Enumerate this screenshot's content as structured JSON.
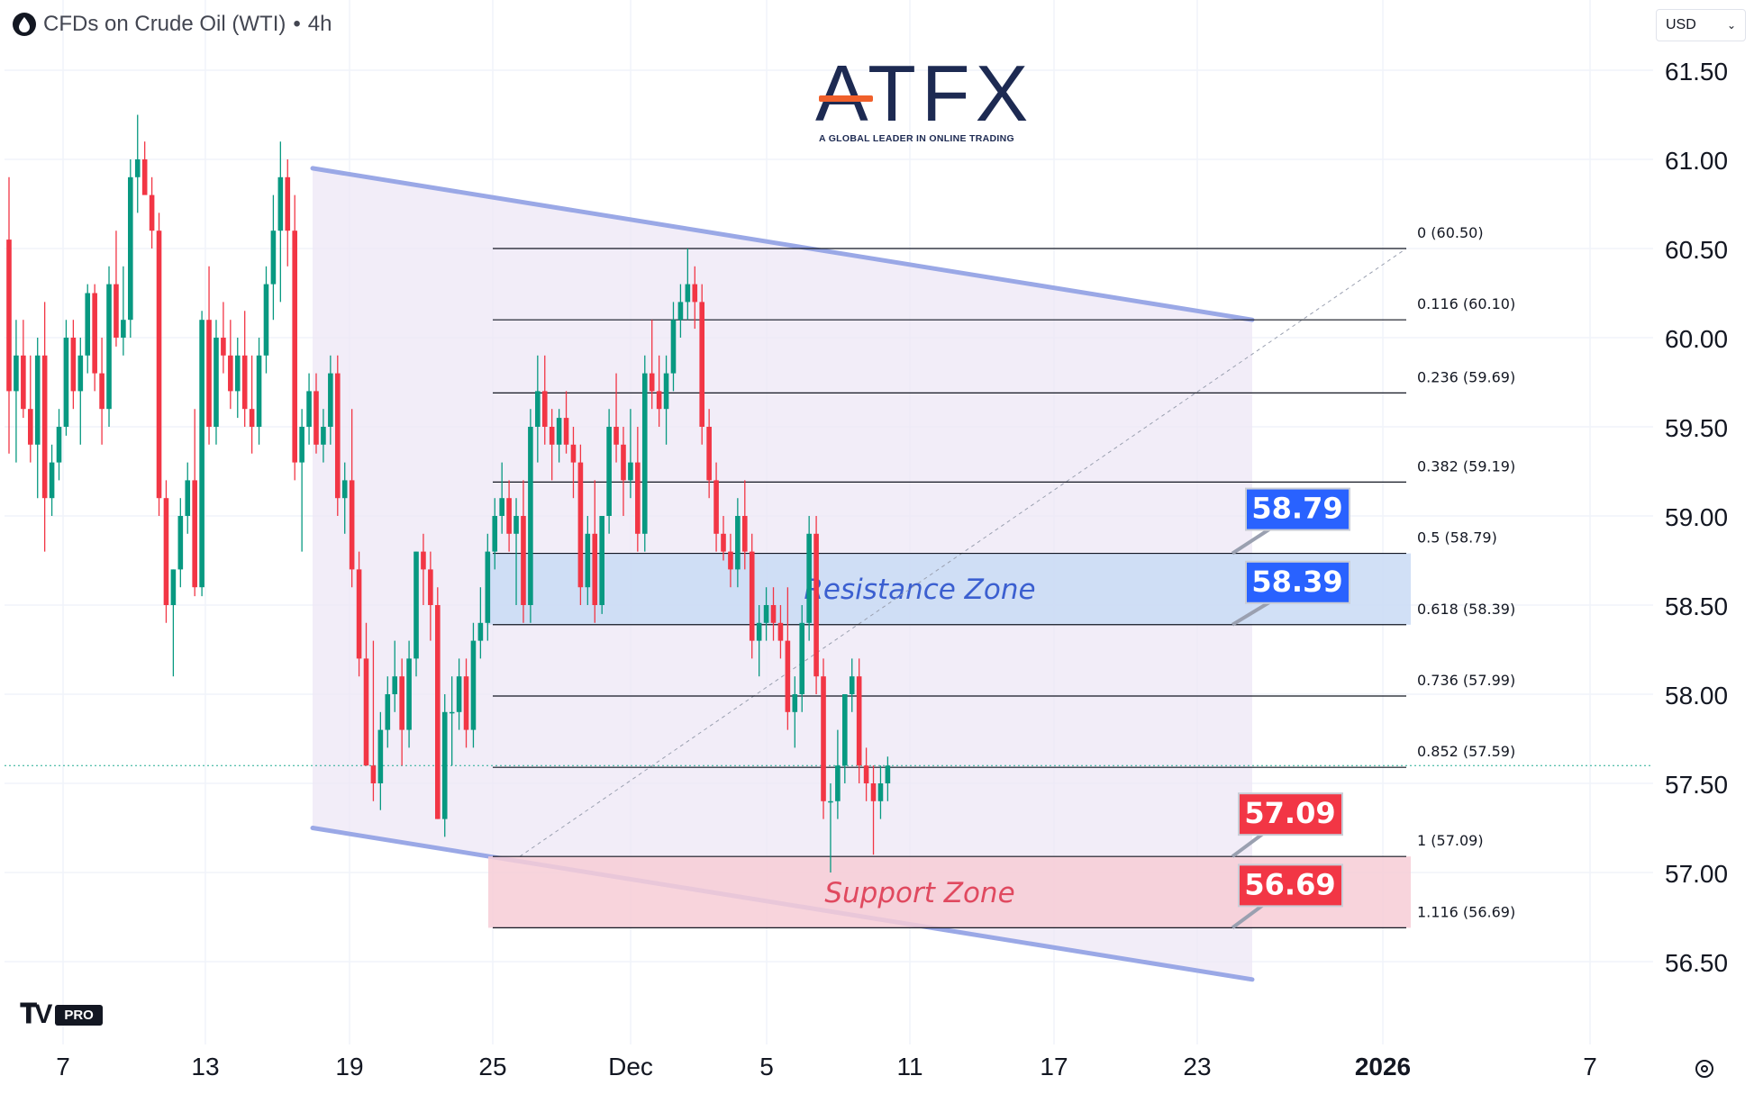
{
  "header": {
    "symbol": "CFDs on Crude Oil (WTI)",
    "separator": "•",
    "interval": "4h",
    "currency": "USD"
  },
  "branding": {
    "logo_text": "ATFX",
    "logo_tagline": "A GLOBAL LEADER IN ONLINE TRADING",
    "platform_badge": "PRO"
  },
  "chart_data": {
    "type": "candlestick",
    "y_axis": {
      "ylim": [
        56.25,
        61.7
      ],
      "ticks": [
        61.5,
        61.0,
        60.5,
        60.0,
        59.5,
        59.0,
        58.5,
        58.0,
        57.5,
        57.0,
        56.5
      ],
      "tick_labels": [
        "61.50",
        "61.00",
        "60.50",
        "60.00",
        "59.50",
        "59.00",
        "58.50",
        "58.00",
        "57.50",
        "57.00",
        "56.50"
      ]
    },
    "x_axis": {
      "labels": [
        "7",
        "13",
        "19",
        "25",
        "Dec",
        "5",
        "11",
        "17",
        "23",
        "2026",
        "7"
      ],
      "bold": [
        false,
        false,
        false,
        false,
        false,
        false,
        false,
        false,
        false,
        true,
        false
      ]
    },
    "candles": [
      [
        60.55,
        60.9,
        59.35,
        59.7
      ],
      [
        59.7,
        60.1,
        59.3,
        59.9
      ],
      [
        59.9,
        60.1,
        59.55,
        59.6
      ],
      [
        59.6,
        59.9,
        59.3,
        59.4
      ],
      [
        59.4,
        60.0,
        59.1,
        59.9
      ],
      [
        59.9,
        60.2,
        58.8,
        59.1
      ],
      [
        59.1,
        59.4,
        59.0,
        59.3
      ],
      [
        59.3,
        59.6,
        59.2,
        59.5
      ],
      [
        59.5,
        60.1,
        59.45,
        60.0
      ],
      [
        60.0,
        60.1,
        59.6,
        59.7
      ],
      [
        59.7,
        60.0,
        59.4,
        59.9
      ],
      [
        59.9,
        60.3,
        59.8,
        60.25
      ],
      [
        60.25,
        60.3,
        59.7,
        59.8
      ],
      [
        59.8,
        60.0,
        59.4,
        59.6
      ],
      [
        59.6,
        60.4,
        59.5,
        60.3
      ],
      [
        60.3,
        60.6,
        59.95,
        60.0
      ],
      [
        60.0,
        60.4,
        59.9,
        60.1
      ],
      [
        60.1,
        61.0,
        60.0,
        60.9
      ],
      [
        60.9,
        61.25,
        60.7,
        61.0
      ],
      [
        61.0,
        61.1,
        60.85,
        60.8
      ],
      [
        60.8,
        60.9,
        60.5,
        60.6
      ],
      [
        60.6,
        60.7,
        59.0,
        59.1
      ],
      [
        59.1,
        59.2,
        58.4,
        58.5
      ],
      [
        58.5,
        58.7,
        58.1,
        58.7
      ],
      [
        58.7,
        59.1,
        58.6,
        59.0
      ],
      [
        59.0,
        59.3,
        58.9,
        59.2
      ],
      [
        59.2,
        59.6,
        58.55,
        58.6
      ],
      [
        58.6,
        60.15,
        58.55,
        60.1
      ],
      [
        60.1,
        60.4,
        59.4,
        59.5
      ],
      [
        59.5,
        60.1,
        59.4,
        60.0
      ],
      [
        60.0,
        60.2,
        59.8,
        59.9
      ],
      [
        59.9,
        60.1,
        59.6,
        59.7
      ],
      [
        59.7,
        60.0,
        59.55,
        59.9
      ],
      [
        59.9,
        60.15,
        59.5,
        59.6
      ],
      [
        59.6,
        59.9,
        59.35,
        59.5
      ],
      [
        59.5,
        60.0,
        59.4,
        59.9
      ],
      [
        59.9,
        60.4,
        59.8,
        60.3
      ],
      [
        60.3,
        60.8,
        60.1,
        60.6
      ],
      [
        60.6,
        61.1,
        60.2,
        60.9
      ],
      [
        60.9,
        61.0,
        60.4,
        60.6
      ],
      [
        60.6,
        60.8,
        59.2,
        59.3
      ],
      [
        59.3,
        59.6,
        58.8,
        59.5
      ],
      [
        59.5,
        59.8,
        59.4,
        59.7
      ],
      [
        59.7,
        59.8,
        59.35,
        59.4
      ],
      [
        59.4,
        59.6,
        59.3,
        59.5
      ],
      [
        59.5,
        59.9,
        59.4,
        59.8
      ],
      [
        59.8,
        59.9,
        59.0,
        59.1
      ],
      [
        59.1,
        59.3,
        58.9,
        59.2
      ],
      [
        59.2,
        59.6,
        58.6,
        58.7
      ],
      [
        58.7,
        58.8,
        58.1,
        58.2
      ],
      [
        58.2,
        58.4,
        57.6,
        57.6
      ],
      [
        57.6,
        58.3,
        57.4,
        57.5
      ],
      [
        57.5,
        57.9,
        57.35,
        57.8
      ],
      [
        57.8,
        58.1,
        57.7,
        58.0
      ],
      [
        58.0,
        58.3,
        57.9,
        58.1
      ],
      [
        58.1,
        58.2,
        57.6,
        57.8
      ],
      [
        57.8,
        58.3,
        57.7,
        58.2
      ],
      [
        58.2,
        58.8,
        58.1,
        58.8
      ],
      [
        58.8,
        58.9,
        58.5,
        58.7
      ],
      [
        58.7,
        58.8,
        58.3,
        58.5
      ],
      [
        58.5,
        58.6,
        57.3,
        57.3
      ],
      [
        57.3,
        58.0,
        57.2,
        57.9
      ],
      [
        57.9,
        58.1,
        57.6,
        57.9
      ],
      [
        57.9,
        58.2,
        57.8,
        58.1
      ],
      [
        58.1,
        58.2,
        57.7,
        57.8
      ],
      [
        57.8,
        58.4,
        57.7,
        58.3
      ],
      [
        58.3,
        58.6,
        58.2,
        58.4
      ],
      [
        58.4,
        58.9,
        58.3,
        58.8
      ],
      [
        58.8,
        59.1,
        58.7,
        59.0
      ],
      [
        59.0,
        59.3,
        58.9,
        59.1
      ],
      [
        59.1,
        59.2,
        58.8,
        58.9
      ],
      [
        58.9,
        59.1,
        58.5,
        59.0
      ],
      [
        59.0,
        59.2,
        58.4,
        58.5
      ],
      [
        58.5,
        59.6,
        58.4,
        59.5
      ],
      [
        59.5,
        59.9,
        59.3,
        59.7
      ],
      [
        59.7,
        59.9,
        59.4,
        59.5
      ],
      [
        59.5,
        59.6,
        59.2,
        59.4
      ],
      [
        59.4,
        59.6,
        59.3,
        59.55
      ],
      [
        59.55,
        59.7,
        59.35,
        59.4
      ],
      [
        59.4,
        59.5,
        59.1,
        59.3
      ],
      [
        59.3,
        59.4,
        58.5,
        58.6
      ],
      [
        58.6,
        59.0,
        58.5,
        58.9
      ],
      [
        58.9,
        59.2,
        58.4,
        58.5
      ],
      [
        58.5,
        59.0,
        58.45,
        59.0
      ],
      [
        59.0,
        59.6,
        58.9,
        59.5
      ],
      [
        59.5,
        59.8,
        59.3,
        59.4
      ],
      [
        59.4,
        59.5,
        59.0,
        59.2
      ],
      [
        59.2,
        59.6,
        59.1,
        59.3
      ],
      [
        59.3,
        59.5,
        58.8,
        58.9
      ],
      [
        58.9,
        59.9,
        58.8,
        59.8
      ],
      [
        59.8,
        60.1,
        59.6,
        59.7
      ],
      [
        59.7,
        59.9,
        59.5,
        59.6
      ],
      [
        59.6,
        59.9,
        59.4,
        59.8
      ],
      [
        59.8,
        60.2,
        59.7,
        60.1
      ],
      [
        60.1,
        60.3,
        60.0,
        60.2
      ],
      [
        60.2,
        60.5,
        60.1,
        60.3
      ],
      [
        60.3,
        60.4,
        60.05,
        60.2
      ],
      [
        60.2,
        60.3,
        59.4,
        59.5
      ],
      [
        59.5,
        59.6,
        59.1,
        59.2
      ],
      [
        59.2,
        59.3,
        58.8,
        58.9
      ],
      [
        58.9,
        59.0,
        58.75,
        58.8
      ],
      [
        58.8,
        58.9,
        58.6,
        58.7
      ],
      [
        58.7,
        59.1,
        58.6,
        59.0
      ],
      [
        59.0,
        59.2,
        58.7,
        58.8
      ],
      [
        58.8,
        58.9,
        58.2,
        58.3
      ],
      [
        58.3,
        58.5,
        58.1,
        58.4
      ],
      [
        58.4,
        58.6,
        58.3,
        58.5
      ],
      [
        58.5,
        58.6,
        58.3,
        58.4
      ],
      [
        58.4,
        58.5,
        58.2,
        58.3
      ],
      [
        58.3,
        58.6,
        57.8,
        57.9
      ],
      [
        57.9,
        58.1,
        57.7,
        58.0
      ],
      [
        58.0,
        58.5,
        57.9,
        58.4
      ],
      [
        58.4,
        59.0,
        58.3,
        58.9
      ],
      [
        58.9,
        59.0,
        58.0,
        58.1
      ],
      [
        58.1,
        58.2,
        57.3,
        57.4
      ],
      [
        57.4,
        57.5,
        57.0,
        57.4
      ],
      [
        57.4,
        57.8,
        57.3,
        57.6
      ],
      [
        57.6,
        58.0,
        57.5,
        58.0
      ],
      [
        58.0,
        58.2,
        57.9,
        58.1
      ],
      [
        58.1,
        58.2,
        57.5,
        57.6
      ],
      [
        57.6,
        57.7,
        57.4,
        57.5
      ],
      [
        57.5,
        57.6,
        57.1,
        57.4
      ],
      [
        57.4,
        57.6,
        57.3,
        57.5
      ],
      [
        57.5,
        57.65,
        57.4,
        57.6
      ]
    ],
    "channel": {
      "upper": [
        [
          18.0,
          60.95
        ],
        [
          26.0,
          60.1
        ]
      ],
      "lower": [
        [
          18.0,
          57.25
        ],
        [
          26.0,
          56.4
        ]
      ]
    },
    "fibonacci": [
      {
        "ratio": "0",
        "value": 60.5,
        "label": "0 (60.50)"
      },
      {
        "ratio": "0.116",
        "value": 60.1,
        "label": "0.116 (60.10)"
      },
      {
        "ratio": "0.236",
        "value": 59.69,
        "label": "0.236 (59.69)"
      },
      {
        "ratio": "0.382",
        "value": 59.19,
        "label": "0.382 (59.19)"
      },
      {
        "ratio": "0.5",
        "value": 58.79,
        "label": "0.5 (58.79)"
      },
      {
        "ratio": "0.618",
        "value": 58.39,
        "label": "0.618 (58.39)"
      },
      {
        "ratio": "0.736",
        "value": 57.99,
        "label": "0.736 (57.99)"
      },
      {
        "ratio": "0.852",
        "value": 57.59,
        "label": "0.852 (57.59)"
      },
      {
        "ratio": "1",
        "value": 57.09,
        "label": "1 (57.09)"
      },
      {
        "ratio": "1.116",
        "value": 56.69,
        "label": "1.116 (56.69)"
      }
    ],
    "fib_trend_line": {
      "from": 57.09,
      "to": 60.5
    },
    "zones": [
      {
        "name": "Resistance Zone",
        "top": 58.79,
        "bottom": 58.39,
        "fill": "#c9dbf5",
        "text_color": "#3b5fd0"
      },
      {
        "name": "Support Zone",
        "top": 57.09,
        "bottom": 56.69,
        "fill": "#f7cdd6",
        "text_color": "#e0495f"
      }
    ],
    "callouts": [
      {
        "text": "58.79",
        "value": 58.79,
        "color": "#2962ff"
      },
      {
        "text": "58.39",
        "value": 58.39,
        "color": "#2962ff"
      },
      {
        "text": "57.09",
        "value": 57.09,
        "color": "#f23645"
      },
      {
        "text": "56.69",
        "value": 56.69,
        "color": "#f23645"
      }
    ],
    "current_price": 57.6,
    "colors": {
      "up": "#089981",
      "down": "#f23645",
      "channel_fill": "#ede7f6",
      "channel_line": "#9aa8e6",
      "fib_line": "#131722",
      "grid": "#f0f3fa"
    },
    "grid": true
  }
}
